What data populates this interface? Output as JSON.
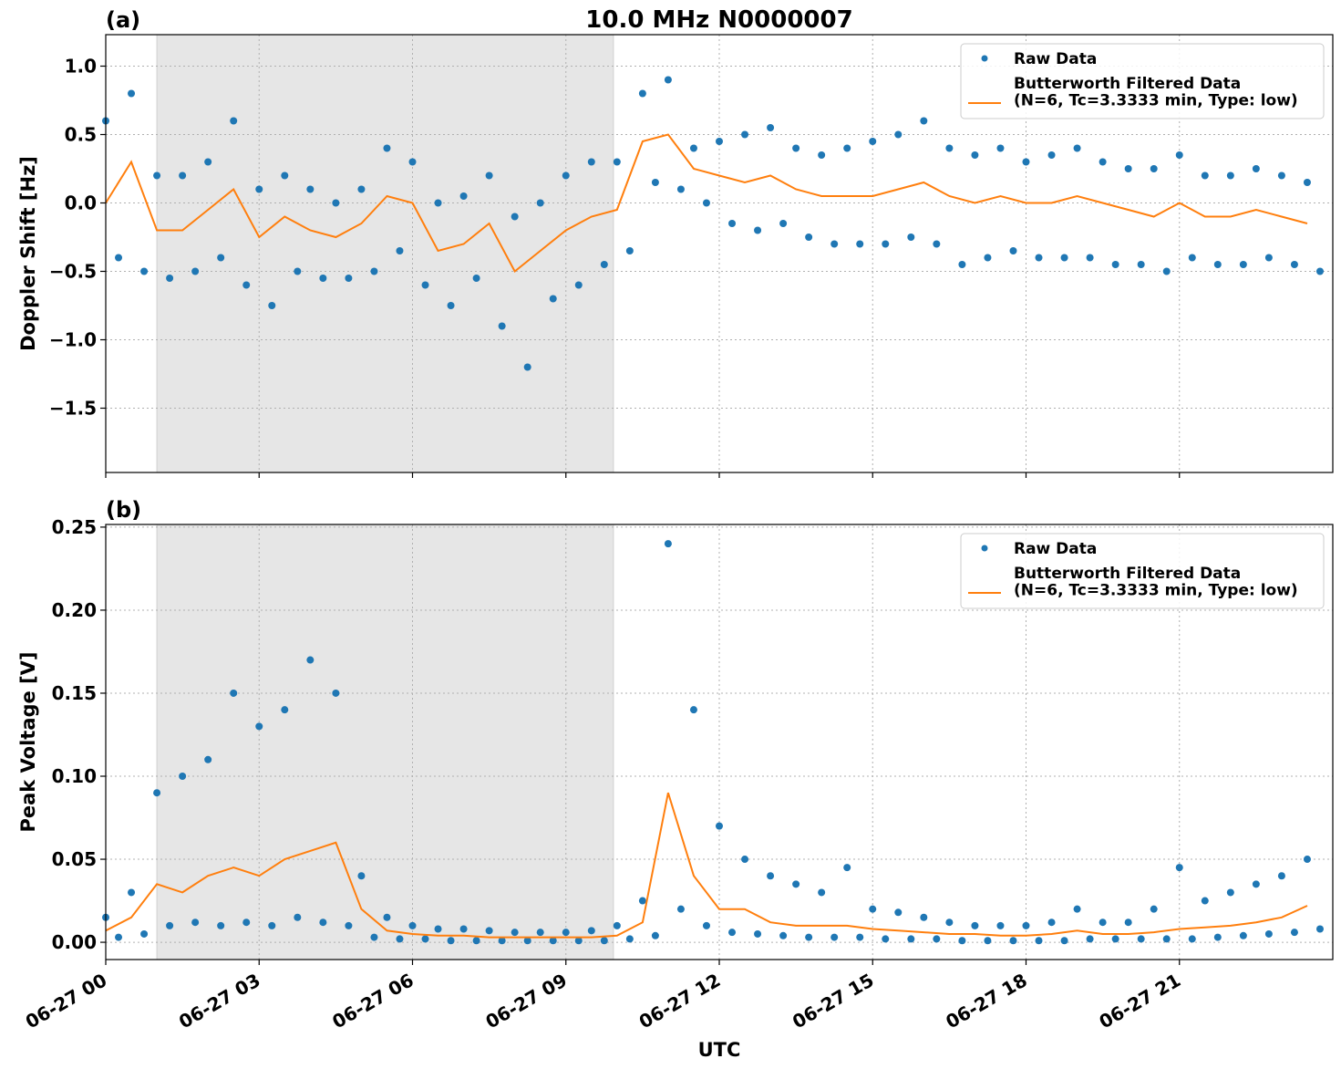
{
  "chart_data": [
    {
      "type": "scatter",
      "panel_label": "(a)",
      "title": "10.0 MHz N0000007",
      "y_label": "Doppler Shift [Hz]",
      "xlim": [
        0,
        24
      ],
      "xticks": [
        0,
        3,
        6,
        9,
        12,
        15,
        18,
        21
      ],
      "ylim": [
        -1.97,
        1.23
      ],
      "yticks": [
        {
          "value": -1.5,
          "label": "−1.5"
        },
        {
          "value": -1.0,
          "label": "−1.0"
        },
        {
          "value": -0.5,
          "label": "−0.5"
        },
        {
          "value": 0.0,
          "label": "0.0"
        },
        {
          "value": 0.5,
          "label": "0.5"
        },
        {
          "value": 1.0,
          "label": "1.0"
        }
      ],
      "grid": true,
      "shaded_span": [
        1.0,
        9.93
      ],
      "legend": "upper right",
      "series": [
        {
          "name": "Raw Data",
          "mode": "markers",
          "color": "#1f77b4",
          "x": [
            0,
            0.25,
            0.5,
            0.75,
            1,
            1.25,
            1.5,
            1.75,
            2,
            2.25,
            2.5,
            2.75,
            3,
            3.25,
            3.5,
            3.75,
            4,
            4.25,
            4.5,
            4.75,
            5,
            5.25,
            5.5,
            5.75,
            6,
            6.25,
            6.5,
            6.75,
            7,
            7.25,
            7.5,
            7.75,
            8,
            8.25,
            8.5,
            8.75,
            9,
            9.25,
            9.5,
            9.75,
            10,
            10.25,
            10.5,
            10.75,
            11,
            11.25,
            11.5,
            11.75,
            12,
            12.25,
            12.5,
            12.75,
            13,
            13.25,
            13.5,
            13.75,
            14,
            14.25,
            14.5,
            14.75,
            15,
            15.25,
            15.5,
            15.75,
            16,
            16.25,
            16.5,
            16.75,
            17,
            17.25,
            17.5,
            17.75,
            18,
            18.25,
            18.5,
            18.75,
            19,
            19.25,
            19.5,
            19.75,
            20,
            20.25,
            20.5,
            20.75,
            21,
            21.25,
            21.5,
            21.75,
            22,
            22.25,
            22.5,
            22.75,
            23,
            23.25,
            23.5,
            23.75
          ],
          "values": [
            0.6,
            -0.4,
            0.8,
            -0.5,
            0.2,
            -0.55,
            0.2,
            -0.5,
            0.3,
            -0.4,
            0.6,
            -0.6,
            0.1,
            -0.75,
            0.2,
            -0.5,
            0.1,
            -0.55,
            0.0,
            -0.55,
            0.1,
            -0.5,
            0.4,
            -0.35,
            0.3,
            -0.6,
            0.0,
            -0.75,
            0.05,
            -0.55,
            0.2,
            -0.9,
            -0.1,
            -1.2,
            0.0,
            -0.7,
            0.2,
            -0.6,
            0.3,
            -0.45,
            0.3,
            -0.35,
            0.8,
            0.15,
            0.9,
            0.1,
            0.4,
            0.0,
            0.45,
            -0.15,
            0.5,
            -0.2,
            0.55,
            -0.15,
            0.4,
            -0.25,
            0.35,
            -0.3,
            0.4,
            -0.3,
            0.45,
            -0.3,
            0.5,
            -0.25,
            0.6,
            -0.3,
            0.4,
            -0.45,
            0.35,
            -0.4,
            0.4,
            -0.35,
            0.3,
            -0.4,
            0.35,
            -0.4,
            0.4,
            -0.4,
            0.3,
            -0.45,
            0.25,
            -0.45,
            0.25,
            -0.5,
            0.35,
            -0.4,
            0.2,
            -0.45,
            0.2,
            -0.45,
            0.25,
            -0.4,
            0.2,
            -0.45,
            0.15,
            -0.5
          ]
        },
        {
          "name": "Butterworth Filtered Data\n(N=6, Tc=3.3333 min, Type: low)",
          "mode": "line",
          "color": "#ff7f0e",
          "x": [
            0,
            0.5,
            1,
            1.5,
            2,
            2.5,
            3,
            3.5,
            4,
            4.5,
            5,
            5.5,
            6,
            6.5,
            7,
            7.5,
            8,
            8.5,
            9,
            9.5,
            10,
            10.5,
            11,
            11.5,
            12,
            12.5,
            13,
            13.5,
            14,
            14.5,
            15,
            15.5,
            16,
            16.5,
            17,
            17.5,
            18,
            18.5,
            19,
            19.5,
            20,
            20.5,
            21,
            21.5,
            22,
            22.5,
            23,
            23.5
          ],
          "values": [
            0.0,
            0.3,
            -0.2,
            -0.2,
            -0.05,
            0.1,
            -0.25,
            -0.1,
            -0.2,
            -0.25,
            -0.15,
            0.05,
            0.0,
            -0.35,
            -0.3,
            -0.15,
            -0.5,
            -0.35,
            -0.2,
            -0.1,
            -0.05,
            0.45,
            0.5,
            0.25,
            0.2,
            0.15,
            0.2,
            0.1,
            0.05,
            0.05,
            0.05,
            0.1,
            0.15,
            0.05,
            0.0,
            0.05,
            0.0,
            0.0,
            0.05,
            0.0,
            -0.05,
            -0.1,
            0.0,
            -0.1,
            -0.1,
            -0.05,
            -0.1,
            -0.15
          ]
        }
      ]
    },
    {
      "type": "scatter",
      "panel_label": "(b)",
      "y_label": "Peak Voltage [V]",
      "x_label": "UTC",
      "xlim": [
        0,
        24
      ],
      "xticks": [
        {
          "value": 0,
          "label": "06-27 00"
        },
        {
          "value": 3,
          "label": "06-27 03"
        },
        {
          "value": 6,
          "label": "06-27 06"
        },
        {
          "value": 9,
          "label": "06-27 09"
        },
        {
          "value": 12,
          "label": "06-27 12"
        },
        {
          "value": 15,
          "label": "06-27 15"
        },
        {
          "value": 18,
          "label": "06-27 18"
        },
        {
          "value": 21,
          "label": "06-27 21"
        }
      ],
      "ylim": [
        -0.0104,
        0.2516
      ],
      "yticks": [
        {
          "value": 0.0,
          "label": "0.00"
        },
        {
          "value": 0.05,
          "label": "0.05"
        },
        {
          "value": 0.1,
          "label": "0.10"
        },
        {
          "value": 0.15,
          "label": "0.15"
        },
        {
          "value": 0.2,
          "label": "0.20"
        },
        {
          "value": 0.25,
          "label": "0.25"
        }
      ],
      "grid": true,
      "shaded_span": [
        1.0,
        9.93
      ],
      "legend": "upper right",
      "series": [
        {
          "name": "Raw Data",
          "mode": "markers",
          "color": "#1f77b4",
          "x": [
            0,
            0.25,
            0.5,
            0.75,
            1,
            1.25,
            1.5,
            1.75,
            2,
            2.25,
            2.5,
            2.75,
            3,
            3.25,
            3.5,
            3.75,
            4,
            4.25,
            4.5,
            4.75,
            5,
            5.25,
            5.5,
            5.75,
            6,
            6.25,
            6.5,
            6.75,
            7,
            7.25,
            7.5,
            7.75,
            8,
            8.25,
            8.5,
            8.75,
            9,
            9.25,
            9.5,
            9.75,
            10,
            10.25,
            10.5,
            10.75,
            11,
            11.25,
            11.5,
            11.75,
            12,
            12.25,
            12.5,
            12.75,
            13,
            13.25,
            13.5,
            13.75,
            14,
            14.25,
            14.5,
            14.75,
            15,
            15.25,
            15.5,
            15.75,
            16,
            16.25,
            16.5,
            16.75,
            17,
            17.25,
            17.5,
            17.75,
            18,
            18.25,
            18.5,
            18.75,
            19,
            19.25,
            19.5,
            19.75,
            20,
            20.25,
            20.5,
            20.75,
            21,
            21.25,
            21.5,
            21.75,
            22,
            22.25,
            22.5,
            22.75,
            23,
            23.25,
            23.5,
            23.75
          ],
          "values": [
            0.015,
            0.003,
            0.03,
            0.005,
            0.09,
            0.01,
            0.1,
            0.012,
            0.11,
            0.01,
            0.15,
            0.012,
            0.13,
            0.01,
            0.14,
            0.015,
            0.17,
            0.012,
            0.15,
            0.01,
            0.04,
            0.003,
            0.015,
            0.002,
            0.01,
            0.002,
            0.008,
            0.001,
            0.008,
            0.001,
            0.007,
            0.001,
            0.006,
            0.001,
            0.006,
            0.001,
            0.006,
            0.001,
            0.007,
            0.001,
            0.01,
            0.002,
            0.025,
            0.004,
            0.24,
            0.02,
            0.14,
            0.01,
            0.07,
            0.006,
            0.05,
            0.005,
            0.04,
            0.004,
            0.035,
            0.003,
            0.03,
            0.003,
            0.045,
            0.003,
            0.02,
            0.002,
            0.018,
            0.002,
            0.015,
            0.002,
            0.012,
            0.001,
            0.01,
            0.001,
            0.01,
            0.001,
            0.01,
            0.001,
            0.012,
            0.001,
            0.02,
            0.002,
            0.012,
            0.002,
            0.012,
            0.002,
            0.02,
            0.002,
            0.045,
            0.002,
            0.025,
            0.003,
            0.03,
            0.004,
            0.035,
            0.005,
            0.04,
            0.006,
            0.05,
            0.008
          ]
        },
        {
          "name": "Butterworth Filtered Data\n(N=6, Tc=3.3333 min, Type: low)",
          "mode": "line",
          "color": "#ff7f0e",
          "x": [
            0,
            0.5,
            1,
            1.5,
            2,
            2.5,
            3,
            3.5,
            4,
            4.5,
            5,
            5.5,
            6,
            6.5,
            7,
            7.5,
            8,
            8.5,
            9,
            9.5,
            10,
            10.5,
            11,
            11.5,
            12,
            12.5,
            13,
            13.5,
            14,
            14.5,
            15,
            15.5,
            16,
            16.5,
            17,
            17.5,
            18,
            18.5,
            19,
            19.5,
            20,
            20.5,
            21,
            21.5,
            22,
            22.5,
            23,
            23.5
          ],
          "values": [
            0.007,
            0.015,
            0.035,
            0.03,
            0.04,
            0.045,
            0.04,
            0.05,
            0.055,
            0.06,
            0.02,
            0.007,
            0.005,
            0.004,
            0.004,
            0.003,
            0.003,
            0.003,
            0.003,
            0.003,
            0.004,
            0.012,
            0.09,
            0.04,
            0.02,
            0.02,
            0.012,
            0.01,
            0.01,
            0.01,
            0.008,
            0.007,
            0.006,
            0.005,
            0.005,
            0.004,
            0.004,
            0.005,
            0.007,
            0.005,
            0.005,
            0.006,
            0.008,
            0.009,
            0.01,
            0.012,
            0.015,
            0.022
          ]
        }
      ]
    }
  ]
}
